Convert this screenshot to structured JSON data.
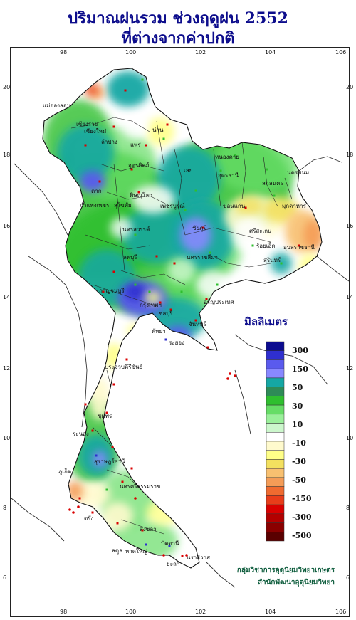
{
  "title": {
    "line1": "ปริมาณฝนรวม ช่วงฤดูฝน 2552",
    "line2": "ที่ต่างจากค่าปกติ"
  },
  "axes": {
    "longitude_ticks": [
      "98",
      "100",
      "102",
      "104",
      "106"
    ],
    "latitude_ticks": [
      "20",
      "18",
      "16",
      "14",
      "12",
      "10",
      "8",
      "6"
    ]
  },
  "legend": {
    "title": "มิลลิเมตร",
    "labels": [
      "300",
      "150",
      "50",
      "30",
      "10",
      "-10",
      "-30",
      "-50",
      "-150",
      "-300",
      "-500"
    ],
    "colors": [
      "#0b0b8f",
      "#2f2fcf",
      "#5a5aee",
      "#8888ff",
      "#15a7a4",
      "#2e8b57",
      "#2fbf2f",
      "#66dd66",
      "#9af09a",
      "#ccf7cc",
      "#ffffff",
      "#fffacd",
      "#ffff88",
      "#f3e05f",
      "#f8c070",
      "#f49c57",
      "#ef6b30",
      "#e83d1a",
      "#d90000",
      "#b30000",
      "#8b0000",
      "#5a0000"
    ]
  },
  "provinces": [
    "เชียงราย",
    "เชียงใหม่",
    "น่าน",
    "ลำปาง",
    "แพร่",
    "แม่ฮ่องสอน",
    "อุตรดิตถ์",
    "ตาก",
    "พิษณุโลก",
    "เพชรบูรณ์",
    "หนองคาย",
    "นครพนม",
    "สกลนคร",
    "เลย",
    "อุดรธานี",
    "ขอนแก่น",
    "มุกดาหาร",
    "ร้อยเอ็ด",
    "อุบลราชธานี",
    "สุรินทร์",
    "นครราชสีมา",
    "ชัยภูมิ",
    "ลพบุรี",
    "นครสวรรค์",
    "กาญจนบุรี",
    "กรุงเทพฯ",
    "ชลบุรี",
    "พัทยา",
    "ระยอง",
    "จันทบุรี",
    "อรัญประเทศ",
    "ประจวบคีรีขันธ์",
    "ชุมพร",
    "ระนอง",
    "สุราษฎร์ธานี",
    "นครศรีธรรมราช",
    "ภูเก็ต",
    "ตรัง",
    "สงขลา",
    "หาดใหญ่",
    "ปัตตานี",
    "นราธิวาส",
    "สตูล",
    "ยะลา",
    "กำแพงเพชร",
    "สุโขทัย",
    "ศรีสะเกษ"
  ],
  "footer": {
    "line1": "กลุ่มวิชาการอุตุนิยมวิทยาเกษตร",
    "line2": "สำนักพัฒนาอุตุนิยมวิทยา"
  }
}
